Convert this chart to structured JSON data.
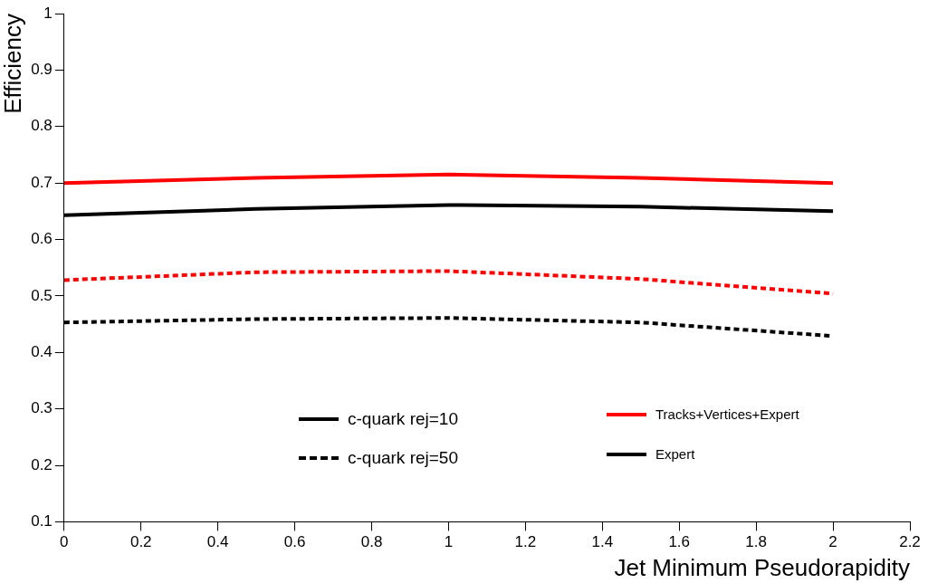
{
  "chart_data": {
    "type": "line",
    "xlabel": "Jet Minimum Pseudorapidity",
    "ylabel": "Efficiency",
    "x": [
      0,
      0.5,
      1,
      1.5,
      2
    ],
    "series": [
      {
        "color": "#ff0000",
        "values": [
          0.7,
          0.709,
          0.715,
          0.709,
          0.7
        ]
      },
      {
        "color": "#000000",
        "values": [
          0.643,
          0.654,
          0.661,
          0.658,
          0.65
        ]
      },
      {
        "color": "#ff0000",
        "values": [
          0.528,
          0.542,
          0.544,
          0.53,
          0.504
        ],
        "line_style": "dashed"
      },
      {
        "color": "#000000",
        "values": [
          0.453,
          0.459,
          0.461,
          0.453,
          0.429
        ],
        "line_style": "dashed"
      }
    ],
    "xlim": [
      0,
      2.2
    ],
    "xticks": [
      0,
      0.2,
      0.4,
      0.6,
      0.8,
      1,
      1.2,
      1.4,
      1.6,
      1.8,
      2,
      2.2
    ],
    "ylim": [
      0.1,
      1
    ],
    "yticks": [
      0.1,
      0.2,
      0.3,
      0.4,
      0.5,
      0.6,
      0.7,
      0.8,
      0.9,
      1
    ],
    "grid": false,
    "legend": false,
    "marker": "none",
    "line_style": "solid",
    "annotations": [
      "c-quark rej=10",
      "c-quark rej=50",
      "Tracks+Vertices+Expert",
      "Expert"
    ]
  }
}
